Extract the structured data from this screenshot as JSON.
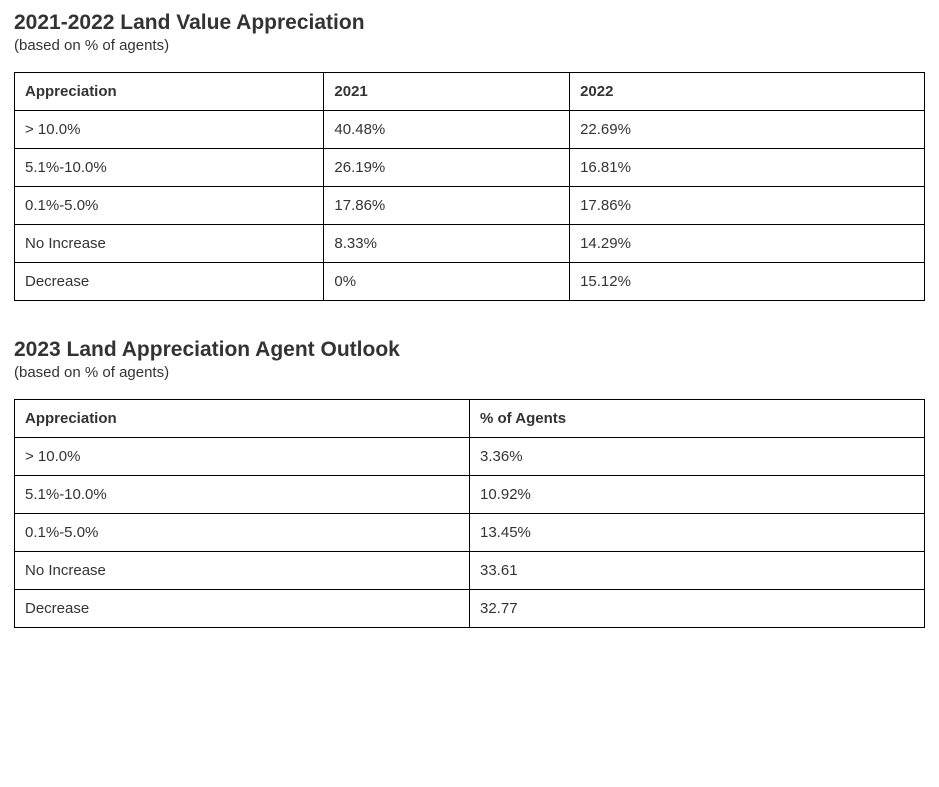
{
  "styling": {
    "background_color": "#ffffff",
    "text_color": "#333333",
    "border_color": "#000000",
    "font_family": "Verdana, Geneva, Tahoma, sans-serif",
    "title_fontsize_pt": 16,
    "subtitle_fontsize_pt": 11,
    "cell_fontsize_pt": 11,
    "title_weight": "bold",
    "header_weight": "bold"
  },
  "section1": {
    "title": "2021-2022 Land Value Appreciation",
    "subtitle": "(based on % of agents)",
    "table": {
      "type": "table",
      "column_widths_pct": [
        34,
        27,
        39
      ],
      "columns": [
        "Appreciation",
        "2021",
        "2022"
      ],
      "rows": [
        [
          "> 10.0%",
          "40.48%",
          "22.69%"
        ],
        [
          "5.1%-10.0%",
          "26.19%",
          "16.81%"
        ],
        [
          "0.1%-5.0%",
          "17.86%",
          "17.86%"
        ],
        [
          "No Increase",
          "8.33%",
          "14.29%"
        ],
        [
          "Decrease",
          "0%",
          "15.12%"
        ]
      ]
    }
  },
  "section2": {
    "title": "2023 Land Appreciation Agent Outlook",
    "subtitle": "(based on % of agents)",
    "table": {
      "type": "table",
      "column_widths_pct": [
        50,
        50
      ],
      "columns": [
        "Appreciation",
        "% of Agents"
      ],
      "rows": [
        [
          "> 10.0%",
          "3.36%"
        ],
        [
          "5.1%-10.0%",
          "10.92%"
        ],
        [
          "0.1%-5.0%",
          "13.45%"
        ],
        [
          "No Increase",
          "33.61"
        ],
        [
          "Decrease",
          "32.77"
        ]
      ]
    }
  }
}
